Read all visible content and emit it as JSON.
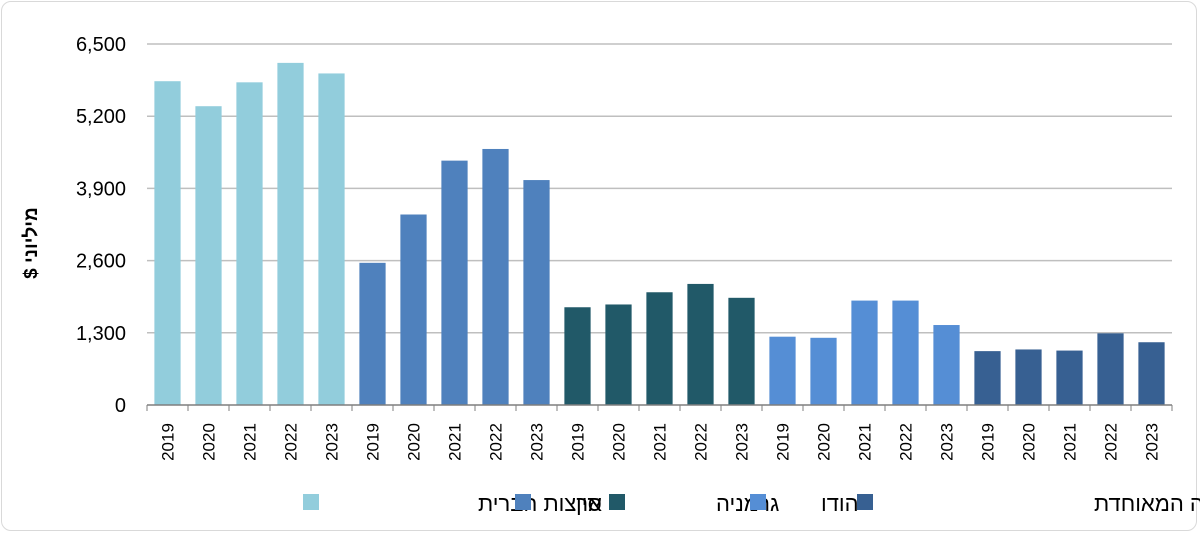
{
  "chart_data": {
    "type": "bar",
    "ylabel": "מיליוני $",
    "ylim": [
      0,
      6500
    ],
    "yticks": [
      0,
      1300,
      2600,
      3900,
      5200,
      6500
    ],
    "ytick_labels": [
      "0",
      "1,300",
      "2,600",
      "3,900",
      "5,200",
      "6,500"
    ],
    "grid": "horizontal",
    "legend_placement": "bottom",
    "categories": [
      "2019",
      "2020",
      "2021",
      "2022",
      "2023"
    ],
    "series": [
      {
        "name": "ארצות הברית",
        "color": "#92CDDC",
        "values": [
          5830,
          5380,
          5810,
          6160,
          5970
        ]
      },
      {
        "name": "סין",
        "color": "#4F81BD",
        "values": [
          2560,
          3430,
          4400,
          4610,
          4050
        ]
      },
      {
        "name": "גרמניה",
        "color": "#215968",
        "values": [
          1760,
          1810,
          2030,
          2180,
          1930
        ]
      },
      {
        "name": "הודו",
        "color": "#558ED5",
        "values": [
          1230,
          1210,
          1880,
          1880,
          1440
        ]
      },
      {
        "name": "הממלכה המאוחדת",
        "color": "#376092",
        "values": [
          970,
          1000,
          980,
          1290,
          1130
        ]
      }
    ]
  }
}
